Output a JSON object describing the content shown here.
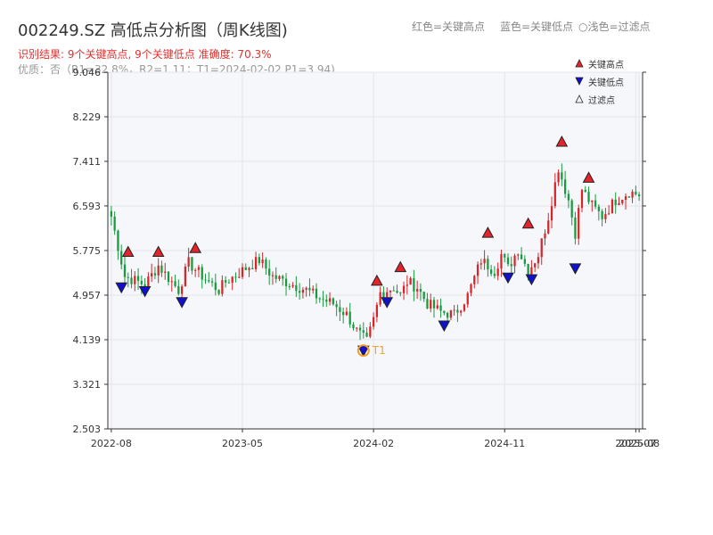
{
  "header": {
    "title": "002249.SZ 高低点分析图（周K线图)",
    "legend_red": "红色=关键高点",
    "legend_blue": "蓝色=关键低点",
    "legend_light": "○浅色=过滤点",
    "result": "识别结果: 9个关键高点, 9个关键低点  准确度: 70.3%",
    "quality": "优质：否（R1=32.8%，R2=1.11；T1=2024-02-02 P1=3.94)"
  },
  "colors": {
    "up": "#d6262b",
    "down": "#1a9a3e",
    "high_marker": "#e3242b",
    "low_marker": "#1111cc",
    "t1": "#f0a030",
    "plot_bg": "#f5f7fa",
    "grid": "#e3e6ea"
  },
  "chart_data": {
    "type": "candlestick",
    "title": "002249.SZ 高低点分析图（周K线图)",
    "xlabel": "",
    "ylabel": "",
    "ylim": [
      2.503,
      9.046
    ],
    "y_ticks": [
      "2.503",
      "3.321",
      "4.139",
      "4.957",
      "5.775",
      "6.593",
      "7.411",
      "8.229",
      "9.046"
    ],
    "x_ticks": [
      {
        "label": "2022-08",
        "week": 0
      },
      {
        "label": "2023-05",
        "week": 39
      },
      {
        "label": "2024-02",
        "week": 78
      },
      {
        "label": "2024-11",
        "week": 117
      },
      {
        "label": "2025-07",
        "week": 156
      },
      {
        "label": "2025-08",
        "week": 157
      }
    ],
    "grid": true,
    "legend_position": "top-right",
    "legend": [
      {
        "label": "关键高点",
        "marker": "up-triangle"
      },
      {
        "label": "关键低点",
        "marker": "down-triangle"
      },
      {
        "label": "过滤点",
        "marker": "hollow-triangle"
      }
    ],
    "anchors": [
      [
        0,
        6.4
      ],
      [
        4,
        5.3
      ],
      [
        10,
        5.15
      ],
      [
        14,
        5.5
      ],
      [
        20,
        5.05
      ],
      [
        23,
        5.55
      ],
      [
        28,
        5.25
      ],
      [
        32,
        5.05
      ],
      [
        34,
        5.2
      ],
      [
        40,
        5.45
      ],
      [
        44,
        5.6
      ],
      [
        48,
        5.3
      ],
      [
        54,
        5.15
      ],
      [
        58,
        5.05
      ],
      [
        62,
        4.9
      ],
      [
        66,
        4.8
      ],
      [
        70,
        4.6
      ],
      [
        73,
        4.3
      ],
      [
        76,
        4.1
      ],
      [
        78,
        4.5
      ],
      [
        80,
        5.0
      ],
      [
        84,
        5.1
      ],
      [
        86,
        4.95
      ],
      [
        88,
        5.2
      ],
      [
        91,
        5.1
      ],
      [
        94,
        4.8
      ],
      [
        98,
        4.65
      ],
      [
        102,
        4.6
      ],
      [
        106,
        4.95
      ],
      [
        110,
        5.6
      ],
      [
        114,
        5.4
      ],
      [
        116,
        5.7
      ],
      [
        118,
        5.45
      ],
      [
        121,
        5.8
      ],
      [
        124,
        5.4
      ],
      [
        127,
        5.7
      ],
      [
        130,
        6.4
      ],
      [
        133,
        7.3
      ],
      [
        136,
        6.7
      ],
      [
        138,
        6.1
      ],
      [
        140,
        6.9
      ],
      [
        143,
        6.6
      ],
      [
        146,
        6.4
      ],
      [
        150,
        6.7
      ],
      [
        154,
        6.85
      ],
      [
        157,
        6.8
      ]
    ],
    "high_points": [
      {
        "week": 5,
        "price": 5.75
      },
      {
        "week": 14,
        "price": 5.75
      },
      {
        "week": 25,
        "price": 5.82
      },
      {
        "week": 79,
        "price": 5.22
      },
      {
        "week": 86,
        "price": 5.47
      },
      {
        "week": 112,
        "price": 6.1
      },
      {
        "week": 124,
        "price": 6.27
      },
      {
        "week": 134,
        "price": 7.77
      },
      {
        "week": 142,
        "price": 7.11
      }
    ],
    "low_points": [
      {
        "week": 3,
        "price": 5.1
      },
      {
        "week": 10,
        "price": 5.03
      },
      {
        "week": 21,
        "price": 4.83
      },
      {
        "week": 75,
        "price": 3.94
      },
      {
        "week": 82,
        "price": 4.83
      },
      {
        "week": 99,
        "price": 4.4
      },
      {
        "week": 118,
        "price": 5.28
      },
      {
        "week": 125,
        "price": 5.25
      },
      {
        "week": 138,
        "price": 5.45
      }
    ],
    "t1": {
      "label": "T1",
      "date": "2024-02-02",
      "week": 75,
      "price": 3.94
    }
  }
}
